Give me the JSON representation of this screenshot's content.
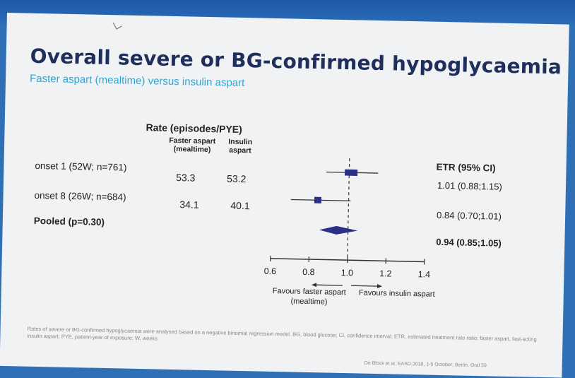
{
  "slide": {
    "title": "Overall severe or BG-confirmed hypoglycaemia",
    "subtitle": "Faster aspart (mealtime) versus insulin aspart",
    "footnote": "Rates of severe or BG-confirmed hypoglycaemia were analysed based on a negative binomial regression model. BG, blood glucose; CI, confidence interval; ETR, estimated treatment rate ratio; faster aspart, fast-acting insulin aspart; PYE, patient-year of exposure; W, weeks",
    "citation": "De Block et al. EASD 2018, 1-5 October; Berlin. Oral 59"
  },
  "table": {
    "rate_header": "Rate (episodes/PYE)",
    "col_faster": "Faster aspart (mealtime)",
    "col_insulin": "Insulin aspart",
    "etr_header": "ETR (95% CI)"
  },
  "chart_data": {
    "type": "forest",
    "rows": [
      {
        "label": "onset 1 (52W; n=761)",
        "faster": "53.3",
        "insulin": "53.2",
        "etr": 1.01,
        "ci_low": 0.88,
        "ci_high": 1.15,
        "ci_text": "1.01 (0.88;1.15)",
        "pooled": false
      },
      {
        "label": "onset 8 (26W; n=684)",
        "faster": "34.1",
        "insulin": "40.1",
        "etr": 0.84,
        "ci_low": 0.7,
        "ci_high": 1.01,
        "ci_text": "0.84 (0.70;1.01)",
        "pooled": false
      },
      {
        "label": "Pooled (p=0.30)",
        "faster": "",
        "insulin": "",
        "etr": 0.94,
        "ci_low": 0.85,
        "ci_high": 1.05,
        "ci_text": "0.94 (0.85;1.05)",
        "pooled": true
      }
    ],
    "xlim": [
      0.6,
      1.4
    ],
    "xticks": [
      "0.6",
      "0.8",
      "1.0",
      "1.2",
      "1.4"
    ],
    "reference_line": 1.0,
    "favours_left": "Favours faster aspart",
    "favours_left_sub": "(mealtime)",
    "favours_right": "Favours insulin aspart",
    "marker_color": "#2b2f86"
  }
}
